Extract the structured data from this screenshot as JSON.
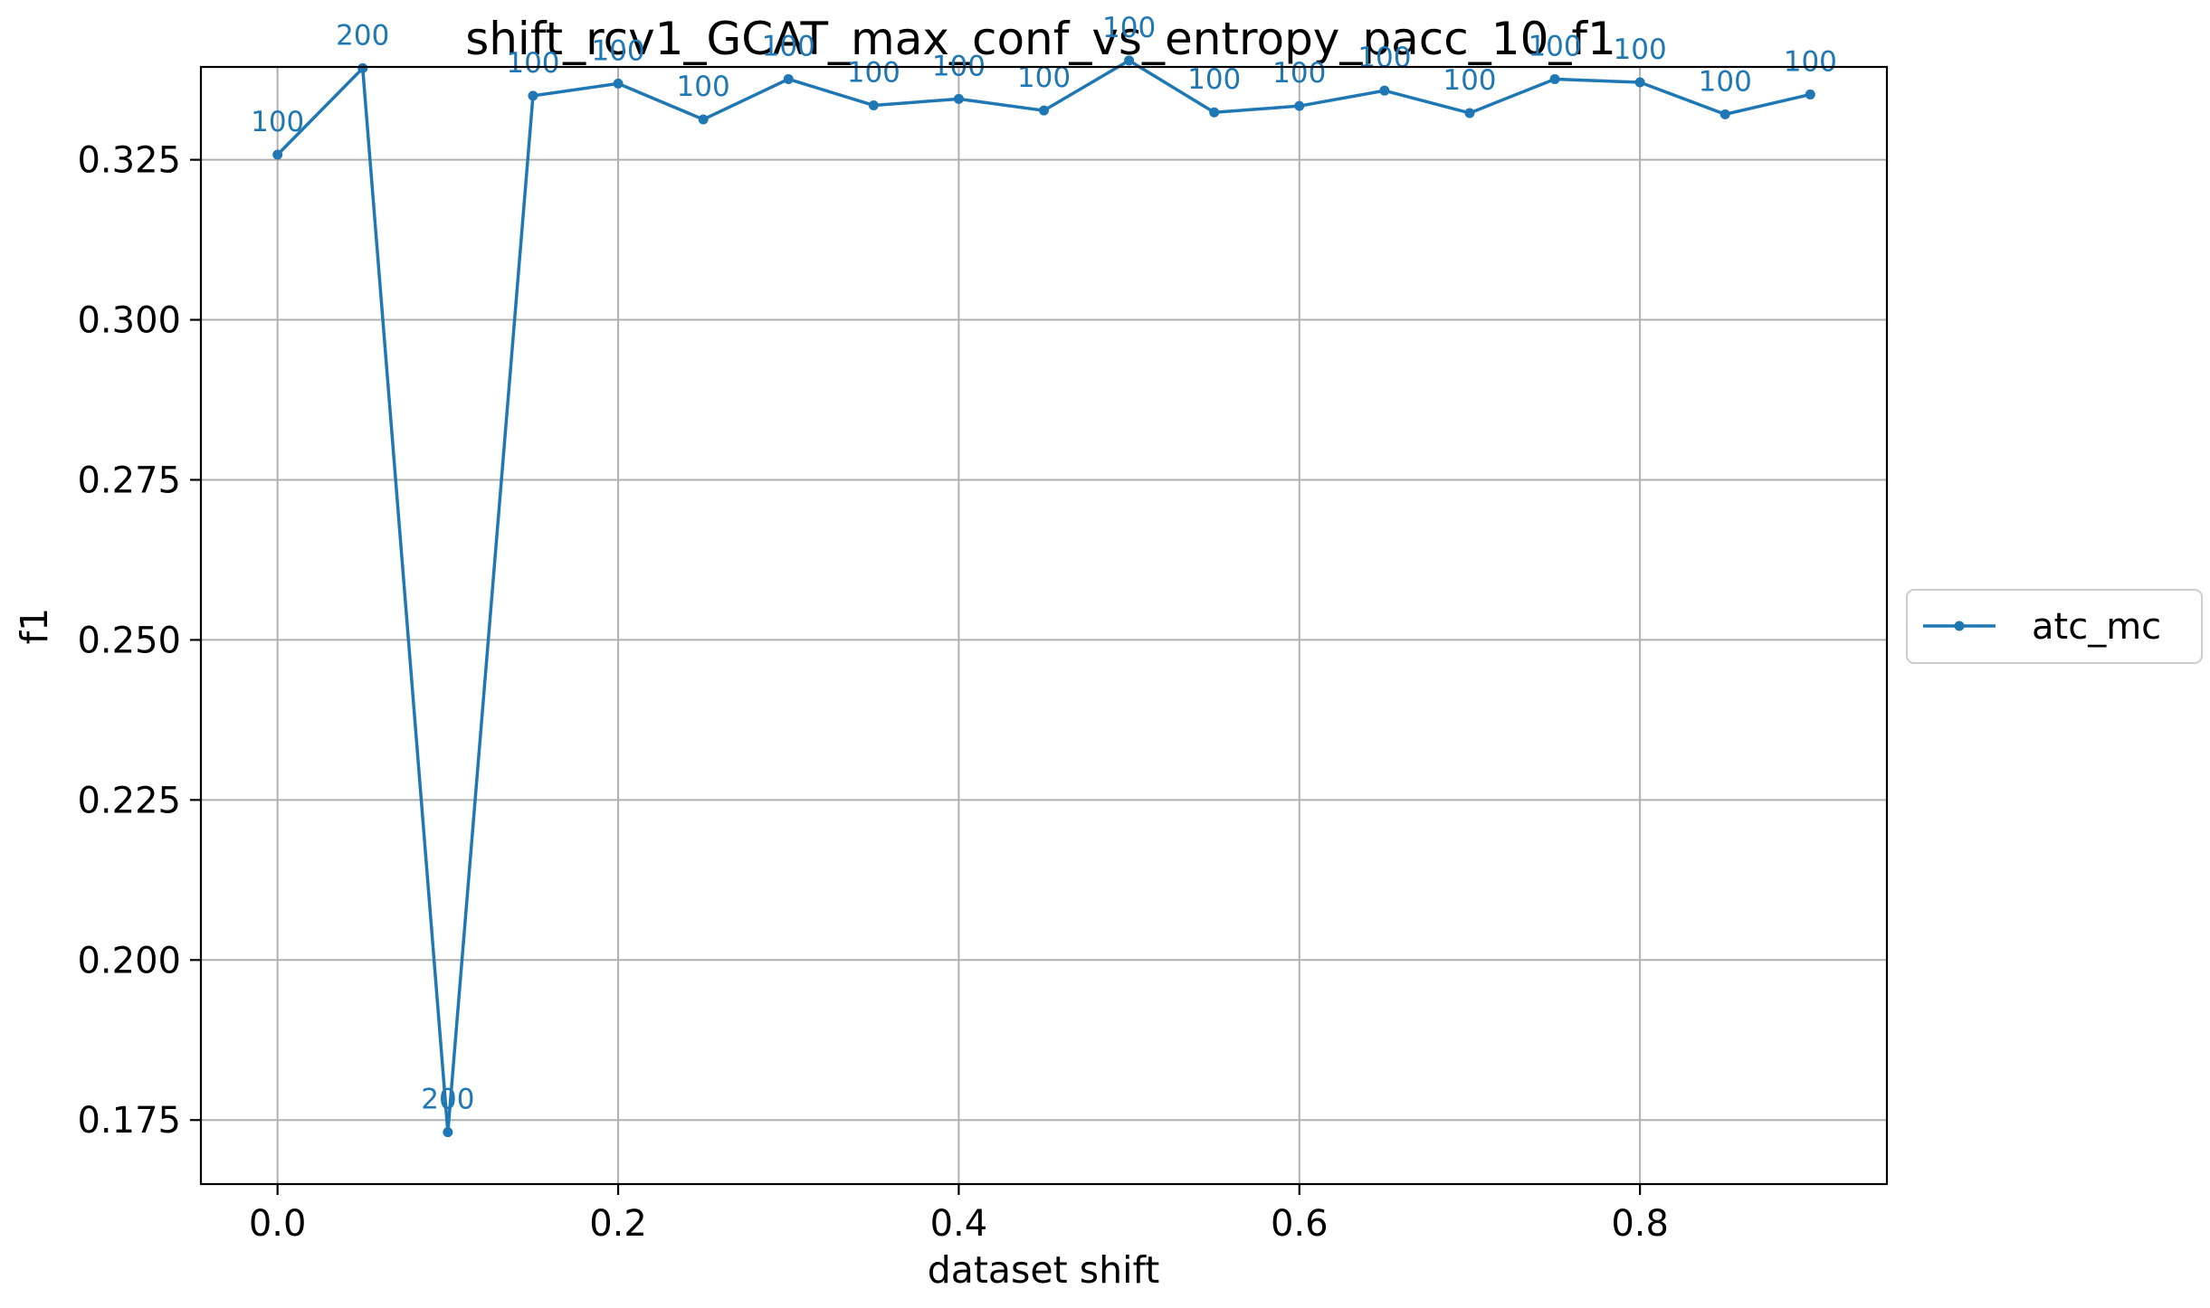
{
  "chart_data": {
    "type": "line",
    "title": "shift_rcv1_GCAT_max_conf_vs_entropy_pacc_10_f1",
    "xlabel": "dataset shift",
    "ylabel": "f1",
    "xlim": [
      -0.045,
      0.945
    ],
    "ylim": [
      0.165,
      0.3395
    ],
    "x_ticks": [
      0.0,
      0.2,
      0.4,
      0.6,
      0.8
    ],
    "x_tick_labels": [
      "0.0",
      "0.2",
      "0.4",
      "0.6",
      "0.8"
    ],
    "y_ticks": [
      0.175,
      0.2,
      0.225,
      0.25,
      0.275,
      0.3,
      0.325
    ],
    "y_tick_labels": [
      "0.175",
      "0.200",
      "0.225",
      "0.250",
      "0.275",
      "0.300",
      "0.325"
    ],
    "grid": true,
    "legend_position": "center-right-outside",
    "series": [
      {
        "name": "atc_mc",
        "color": "#1f77b4",
        "marker": "circle",
        "x": [
          0.0,
          0.05,
          0.1,
          0.15,
          0.2,
          0.25,
          0.3,
          0.35,
          0.4,
          0.45,
          0.5,
          0.55,
          0.6,
          0.65,
          0.7,
          0.75,
          0.8,
          0.85,
          0.9
        ],
        "values": [
          0.3258,
          0.3393,
          0.1731,
          0.335,
          0.3369,
          0.3313,
          0.3376,
          0.3335,
          0.3345,
          0.3327,
          0.3405,
          0.3324,
          0.3334,
          0.3358,
          0.3323,
          0.3376,
          0.3371,
          0.3321,
          0.3352
        ],
        "labels": [
          "100",
          "200",
          "200",
          "100",
          "100",
          "100",
          "100",
          "100",
          "100",
          "100",
          "100",
          "100",
          "100",
          "100",
          "100",
          "100",
          "100",
          "100",
          "100"
        ]
      }
    ]
  }
}
